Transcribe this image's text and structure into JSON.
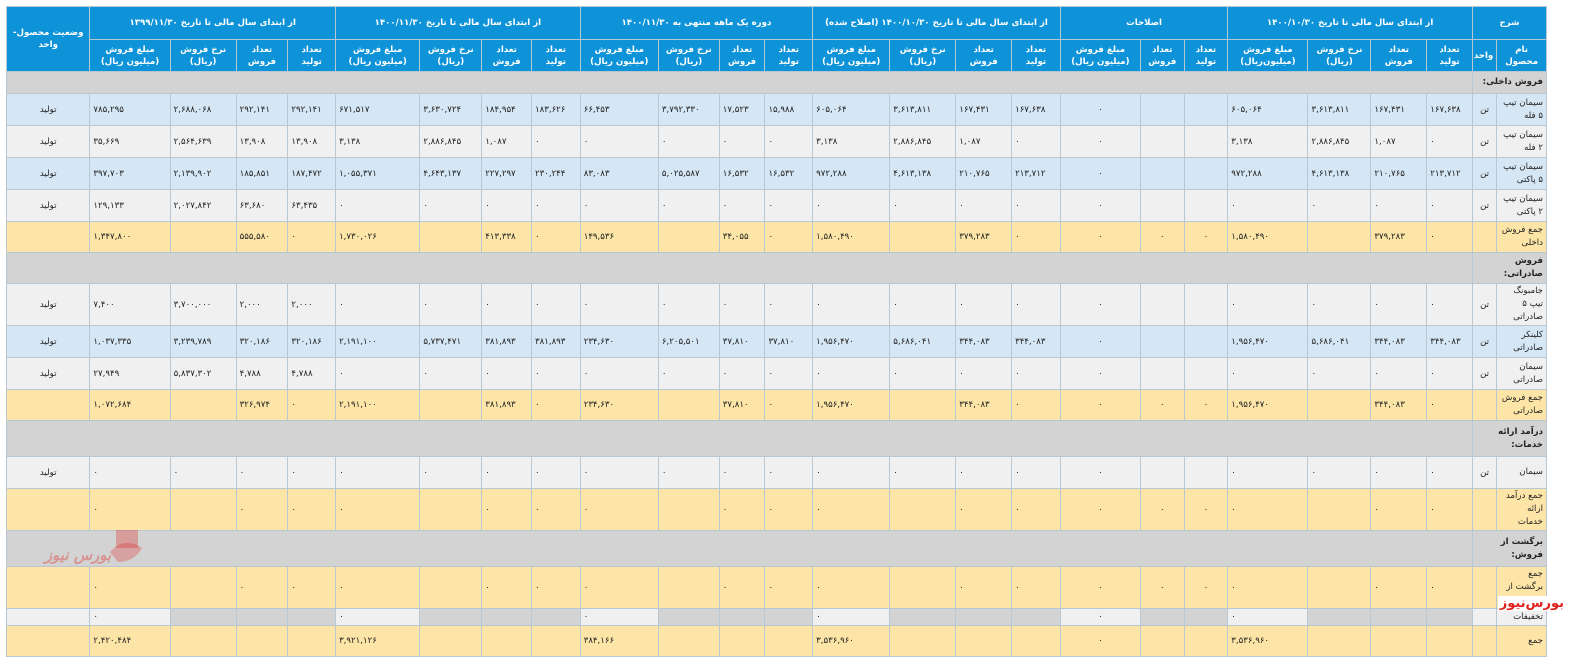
{
  "header": {
    "c_desc": "شرح",
    "g1": "از ابتدای سال مالی تا تاریخ ۱۴۰۰/۱۰/۳۰",
    "g2": "اصلاحات",
    "g3": "از ابتدای سال مالی تا تاریخ ۱۴۰۰/۱۰/۳۰ (اصلاح شده)",
    "g4": "دوره یک ماهه منتهی به ۱۴۰۰/۱۱/۳۰",
    "g5": "از ابتدای سال مالی تا تاریخ ۱۴۰۰/۱۱/۳۰",
    "g6": "از ابتدای سال مالی تا تاریخ ۱۳۹۹/۱۱/۳۰",
    "c_status": "وضعیت محصول-واحد",
    "c_product": "نام محصول",
    "c_unit": "واحد",
    "s_prod": "تعداد تولید",
    "s_sales": "تعداد فروش",
    "s_rate": "نرخ فروش (ریال)",
    "s_amount": "مبلغ فروش (میلیون ریال)",
    "s_amount_b": "مبلغ فروش (میلیون‌ریال)"
  },
  "rows": [
    {
      "t": "sec",
      "name": "فروش داخلی:"
    },
    {
      "t": "blue",
      "name": "سیمان تیپ ۵ فله",
      "unit": "تن",
      "status": "تولید",
      "v": [
        "۱۶۷,۶۳۸",
        "۱۶۷,۴۳۱",
        "۳,۶۱۳,۸۱۱",
        "۶۰۵,۰۶۴",
        "",
        "",
        "۰",
        "۱۶۷,۶۳۸",
        "۱۶۷,۴۳۱",
        "۳,۶۱۳,۸۱۱",
        "۶۰۵,۰۶۴",
        "۱۵,۹۸۸",
        "۱۷,۵۲۳",
        "۳,۷۹۲,۳۳۰",
        "۶۶,۴۵۳",
        "۱۸۳,۶۲۶",
        "۱۸۴,۹۵۴",
        "۳,۶۳۰,۷۲۴",
        "۶۷۱,۵۱۷",
        "۲۹۲,۱۴۱",
        "۲۹۲,۱۴۱",
        "۲,۶۸۸,۰۶۸",
        "۷۸۵,۲۹۵"
      ]
    },
    {
      "t": "white",
      "name": "سیمان تیپ ۲ فله",
      "unit": "تن",
      "status": "تولید",
      "v": [
        "۰",
        "۱,۰۸۷",
        "۲,۸۸۶,۸۴۵",
        "۳,۱۳۸",
        "",
        "",
        "۰",
        "۰",
        "۱,۰۸۷",
        "۲,۸۸۶,۸۴۵",
        "۳,۱۳۸",
        "۰",
        "۰",
        "۰",
        "۰",
        "۰",
        "۱,۰۸۷",
        "۲,۸۸۶,۸۴۵",
        "۳,۱۳۸",
        "۱۳,۹۰۸",
        "۱۳,۹۰۸",
        "۲,۵۶۴,۶۳۹",
        "۳۵,۶۶۹"
      ]
    },
    {
      "t": "blue",
      "name": "سیمان تیپ ۵ پاکتی",
      "unit": "تن",
      "status": "تولید",
      "v": [
        "۲۱۳,۷۱۲",
        "۲۱۰,۷۶۵",
        "۴,۶۱۳,۱۳۸",
        "۹۷۲,۲۸۸",
        "",
        "",
        "۰",
        "۲۱۳,۷۱۲",
        "۲۱۰,۷۶۵",
        "۴,۶۱۳,۱۳۸",
        "۹۷۲,۲۸۸",
        "۱۶,۵۳۲",
        "۱۶,۵۳۲",
        "۵,۰۲۵,۵۸۷",
        "۸۳,۰۸۳",
        "۲۳۰,۲۴۴",
        "۲۲۷,۲۹۷",
        "۴,۶۴۳,۱۳۷",
        "۱,۰۵۵,۳۷۱",
        "۱۸۷,۴۷۲",
        "۱۸۵,۸۵۱",
        "۲,۱۳۹,۹۰۲",
        "۳۹۷,۷۰۳"
      ]
    },
    {
      "t": "white",
      "name": "سیمان تیپ ۲ پاکتی",
      "unit": "تن",
      "status": "تولید",
      "v": [
        "۰",
        "۰",
        "۰",
        "۰",
        "",
        "",
        "۰",
        "۰",
        "۰",
        "۰",
        "۰",
        "۰",
        "۰",
        "۰",
        "۰",
        "۰",
        "۰",
        "۰",
        "۰",
        "۶۳,۴۳۵",
        "۶۳,۶۸۰",
        "۲,۰۲۷,۸۴۲",
        "۱۲۹,۱۳۳"
      ]
    },
    {
      "t": "sum",
      "name": "جمع فروش داخلی",
      "unit": "",
      "status": "",
      "v": [
        "۰",
        "۳۷۹,۲۸۳",
        "",
        "۱,۵۸۰,۴۹۰",
        "۰",
        "۰",
        "۰",
        "۰",
        "۳۷۹,۲۸۳",
        "",
        "۱,۵۸۰,۴۹۰",
        "۰",
        "۳۴,۰۵۵",
        "",
        "۱۴۹,۵۳۶",
        "۰",
        "۴۱۳,۳۳۸",
        "",
        "۱,۷۳۰,۰۲۶",
        "۰",
        "۵۵۵,۵۸۰",
        "",
        "۱,۳۴۷,۸۰۰"
      ]
    },
    {
      "t": "sec",
      "name": "فروش صادراتی:"
    },
    {
      "t": "white",
      "name": "جامبونگ تیپ ۵ صادراتی",
      "unit": "تن",
      "status": "تولید",
      "v": [
        "۰",
        "۰",
        "۰",
        "۰",
        "",
        "",
        "۰",
        "۰",
        "۰",
        "۰",
        "۰",
        "۰",
        "۰",
        "۰",
        "۰",
        "۰",
        "۰",
        "۰",
        "۰",
        "۲,۰۰۰",
        "۲,۰۰۰",
        "۳,۷۰۰,۰۰۰",
        "۷,۴۰۰"
      ]
    },
    {
      "t": "blue",
      "name": "کلینکر صادراتی",
      "unit": "تن",
      "status": "تولید",
      "v": [
        "۳۴۴,۰۸۳",
        "۳۴۴,۰۸۳",
        "۵,۶۸۶,۰۴۱",
        "۱,۹۵۶,۴۷۰",
        "",
        "",
        "۰",
        "۳۴۴,۰۸۳",
        "۳۴۴,۰۸۳",
        "۵,۶۸۶,۰۴۱",
        "۱,۹۵۶,۴۷۰",
        "۳۷,۸۱۰",
        "۳۷,۸۱۰",
        "۶,۲۰۵,۵۰۱",
        "۲۳۴,۶۳۰",
        "۳۸۱,۸۹۳",
        "۳۸۱,۸۹۳",
        "۵,۷۳۷,۴۷۱",
        "۲,۱۹۱,۱۰۰",
        "۳۲۰,۱۸۶",
        "۳۲۰,۱۸۶",
        "۳,۲۳۹,۷۸۹",
        "۱,۰۳۷,۳۳۵"
      ]
    },
    {
      "t": "white",
      "name": "سیمان صادراتی",
      "unit": "تن",
      "status": "تولید",
      "v": [
        "۰",
        "۰",
        "۰",
        "۰",
        "",
        "",
        "۰",
        "۰",
        "۰",
        "۰",
        "۰",
        "۰",
        "۰",
        "۰",
        "۰",
        "۰",
        "۰",
        "۰",
        "۰",
        "۴,۷۸۸",
        "۴,۷۸۸",
        "۵,۸۳۷,۳۰۲",
        "۲۷,۹۴۹"
      ]
    },
    {
      "t": "sum",
      "name": "جمع فروش صادراتی",
      "unit": "",
      "status": "",
      "v": [
        "۰",
        "۳۴۴,۰۸۳",
        "",
        "۱,۹۵۶,۴۷۰",
        "۰",
        "۰",
        "۰",
        "۰",
        "۳۴۴,۰۸۳",
        "",
        "۱,۹۵۶,۴۷۰",
        "۰",
        "۳۷,۸۱۰",
        "",
        "۲۳۴,۶۳۰",
        "۰",
        "۳۸۱,۸۹۳",
        "",
        "۲,۱۹۱,۱۰۰",
        "۰",
        "۳۲۶,۹۷۴",
        "",
        "۱,۰۷۲,۶۸۴"
      ]
    },
    {
      "t": "sec",
      "name": "درآمد ارائه خدمات:"
    },
    {
      "t": "white",
      "name": "سیمان",
      "unit": "تن",
      "status": "تولید",
      "v": [
        "۰",
        "۰",
        "۰",
        "۰",
        "",
        "",
        "۰",
        "۰",
        "۰",
        "۰",
        "۰",
        "۰",
        "۰",
        "۰",
        "۰",
        "۰",
        "۰",
        "۰",
        "۰",
        "۰",
        "۰",
        "۰",
        "۰"
      ]
    },
    {
      "t": "sum",
      "name": "جمع درآمد ارائه خدمات",
      "unit": "",
      "status": "",
      "v": [
        "۰",
        "۰",
        "",
        "۰",
        "۰",
        "۰",
        "۰",
        "۰",
        "۰",
        "",
        "۰",
        "۰",
        "۰",
        "",
        "۰",
        "۰",
        "۰",
        "",
        "۰",
        "۰",
        "۰",
        "",
        "۰"
      ]
    },
    {
      "t": "sec",
      "name": "برگشت از فروش:"
    },
    {
      "t": "sum",
      "name": "جمع برگشت از فروش",
      "unit": "",
      "status": "",
      "v": [
        "۰",
        "۰",
        "",
        "۰",
        "۰",
        "۰",
        "۰",
        "۰",
        "۰",
        "",
        "۰",
        "۰",
        "۰",
        "",
        "۰",
        "۰",
        "۰",
        "",
        "۰",
        "۰",
        "۰",
        "",
        "۰"
      ]
    },
    {
      "t": "gray",
      "name": "تخفیفات",
      "unit": "",
      "status": "",
      "v": [
        "",
        "",
        "",
        "۰",
        "",
        "",
        "۰",
        "",
        "",
        "",
        "۰",
        "",
        "",
        "",
        "۰",
        "",
        "",
        "",
        "۰",
        "",
        "",
        "",
        "۰"
      ]
    },
    {
      "t": "sum",
      "name": "جمع",
      "unit": "",
      "status": "",
      "v": [
        "",
        "",
        "",
        "۳,۵۳۶,۹۶۰",
        "",
        "",
        "۰",
        "",
        "",
        "",
        "۳,۵۳۶,۹۶۰",
        "",
        "",
        "",
        "۳۸۴,۱۶۶",
        "",
        "",
        "",
        "۳,۹۲۱,۱۲۶",
        "",
        "",
        "",
        "۲,۴۲۰,۴۸۴"
      ]
    }
  ],
  "watermark": {
    "logo_text": "بورس نیوز",
    "corner_text": "بورس‌نیوز",
    "accent_color": "#e0201c",
    "header_color": "#0e93d8"
  }
}
